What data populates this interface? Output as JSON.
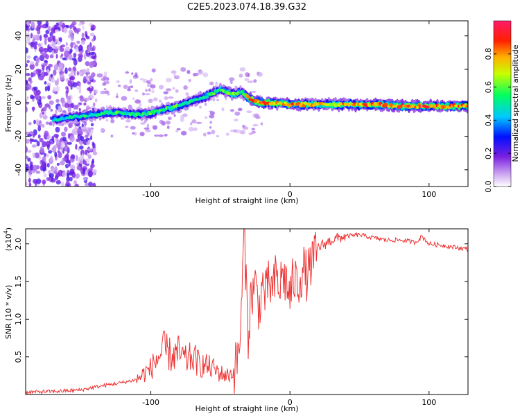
{
  "figure": {
    "title": "C2E5.2023.074.18.39.G32"
  },
  "chart_data": [
    {
      "type": "heatmap",
      "xlabel": "Height of straight line (km)",
      "ylabel": "Frequency (Hz)",
      "xlim": [
        -190,
        128
      ],
      "ylim": [
        -50,
        49
      ],
      "x_ticks": [
        -100,
        0,
        100
      ],
      "y_ticks": [
        -40,
        -20,
        0,
        20,
        40
      ],
      "grid": false,
      "colorbar": {
        "label": "Normalized spectral amplitude",
        "range": [
          0,
          1
        ],
        "ticks": [
          0.0,
          0.2,
          0.4,
          0.6,
          0.8
        ],
        "colors": [
          "#ffffff",
          "#8a2be2",
          "#0000ff",
          "#00ffff",
          "#00ff00",
          "#ffff00",
          "#ff0000",
          "#ff1493"
        ]
      },
      "ridge": {
        "x": [
          -170,
          -160,
          -150,
          -140,
          -130,
          -120,
          -110,
          -100,
          -90,
          -80,
          -70,
          -60,
          -50,
          -40,
          -35,
          -30,
          -25,
          -20,
          -10,
          0,
          10,
          20,
          40,
          60,
          80,
          100,
          128
        ],
        "y": [
          -10,
          -9,
          -8,
          -7,
          -6,
          -6,
          -7,
          -6,
          -4,
          -2,
          1,
          4,
          8,
          5,
          7,
          3,
          1,
          0,
          0,
          -1,
          -1,
          -1,
          -1,
          -1,
          -2,
          -2,
          -2
        ],
        "amplitude": [
          0.45,
          0.5,
          0.55,
          0.55,
          0.6,
          0.55,
          0.55,
          0.6,
          0.55,
          0.6,
          0.55,
          0.55,
          0.6,
          0.7,
          0.55,
          0.85,
          0.9,
          0.9,
          0.8,
          0.85,
          0.8,
          0.75,
          0.8,
          0.85,
          0.9,
          0.9,
          0.85
        ]
      }
    },
    {
      "type": "line",
      "xlabel": "Height of straight line (km)",
      "ylabel": "SNR (10 * v/v)",
      "y_multiplier": "(x10",
      "y_multiplier_exp": "4",
      "xlim": [
        -190,
        128
      ],
      "ylim": [
        0,
        2.2
      ],
      "x_ticks": [
        -100,
        0,
        100
      ],
      "y_ticks": [
        0.5,
        1.0,
        1.5,
        2.0
      ],
      "y_tick_labels": [
        "0.5",
        "1.0",
        "1.5",
        "2.0"
      ],
      "grid": false,
      "series": [
        {
          "color": "#ee3333",
          "x": [
            -190,
            -170,
            -150,
            -140,
            -130,
            -120,
            -110,
            -100,
            -95,
            -90,
            -85,
            -80,
            -75,
            -70,
            -65,
            -60,
            -55,
            -50,
            -45,
            -40,
            -37,
            -35,
            -33,
            -30,
            -28,
            -25,
            -22,
            -20,
            -17,
            -15,
            -12,
            -10,
            -8,
            -5,
            -3,
            0,
            3,
            5,
            8,
            10,
            13,
            15,
            18,
            20,
            25,
            30,
            35,
            40,
            50,
            60,
            70,
            80,
            90,
            95,
            100,
            110,
            120,
            128
          ],
          "y": [
            0.03,
            0.04,
            0.06,
            0.1,
            0.13,
            0.16,
            0.2,
            0.35,
            0.48,
            0.6,
            0.5,
            0.55,
            0.45,
            0.5,
            0.4,
            0.38,
            0.34,
            0.28,
            0.25,
            0.3,
            0.55,
            1.0,
            2.2,
            0.8,
            1.3,
            1.45,
            1.15,
            1.45,
            1.3,
            1.5,
            1.35,
            1.6,
            1.4,
            1.6,
            1.5,
            1.3,
            1.55,
            1.45,
            1.6,
            1.65,
            1.55,
            1.75,
            1.8,
            1.95,
            2.0,
            2.05,
            2.08,
            2.1,
            2.12,
            2.08,
            2.05,
            2.05,
            2.02,
            2.1,
            2.0,
            1.98,
            1.95,
            1.93
          ]
        }
      ]
    }
  ]
}
